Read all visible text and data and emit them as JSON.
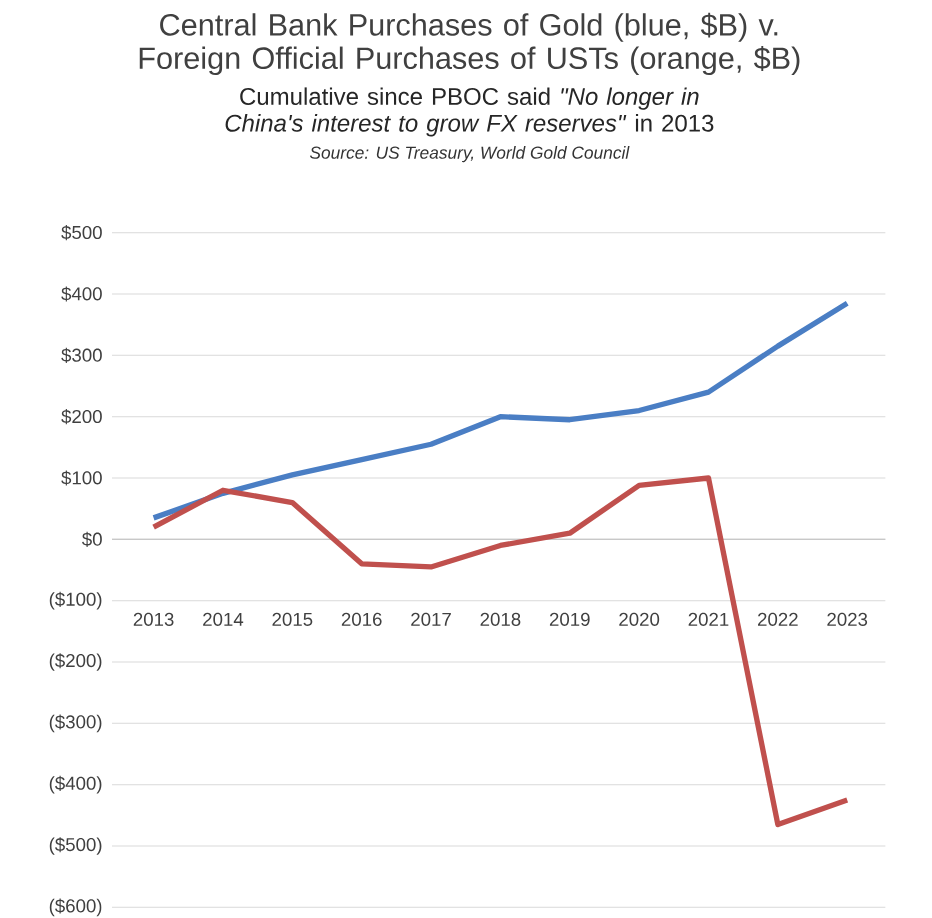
{
  "chart_data": {
    "type": "line",
    "title": "Central Bank Purchases of Gold (blue, $B) v. Foreign Official Purchases of USTs (orange, $B)",
    "subtitle": "Cumulative since PBOC said *\"No longer in China's interest to grow FX reserves\"* in 2013",
    "annotations": [
      "Source: US Treasury, World Gold Council"
    ],
    "categories": [
      "2013",
      "2014",
      "2015",
      "2016",
      "2017",
      "2018",
      "2019",
      "2020",
      "2021",
      "2022",
      "2023"
    ],
    "series": [
      {
        "color": "#4a7ec4",
        "values": [
          35,
          75,
          105,
          130,
          155,
          200,
          195,
          210,
          240,
          315,
          385
        ]
      },
      {
        "color": "#c0504d",
        "values": [
          20,
          80,
          60,
          -40,
          -45,
          -10,
          10,
          88,
          100,
          -465,
          -425
        ]
      }
    ],
    "ylim": [
      -600,
      500
    ],
    "yticks": [
      {
        "value": 500,
        "label": "$500"
      },
      {
        "value": 400,
        "label": "$400"
      },
      {
        "value": 300,
        "label": "$300"
      },
      {
        "value": 200,
        "label": "$200"
      },
      {
        "value": 100,
        "label": "$100"
      },
      {
        "value": 0,
        "label": "$0"
      },
      {
        "value": -100,
        "label": "($100)"
      },
      {
        "value": -200,
        "label": "($200)"
      },
      {
        "value": -300,
        "label": "($300)"
      },
      {
        "value": -400,
        "label": "($400)"
      },
      {
        "value": -500,
        "label": "($500)"
      },
      {
        "value": -600,
        "label": "($600)"
      }
    ],
    "grid": "y",
    "marker": "none",
    "line_style": "solid"
  }
}
